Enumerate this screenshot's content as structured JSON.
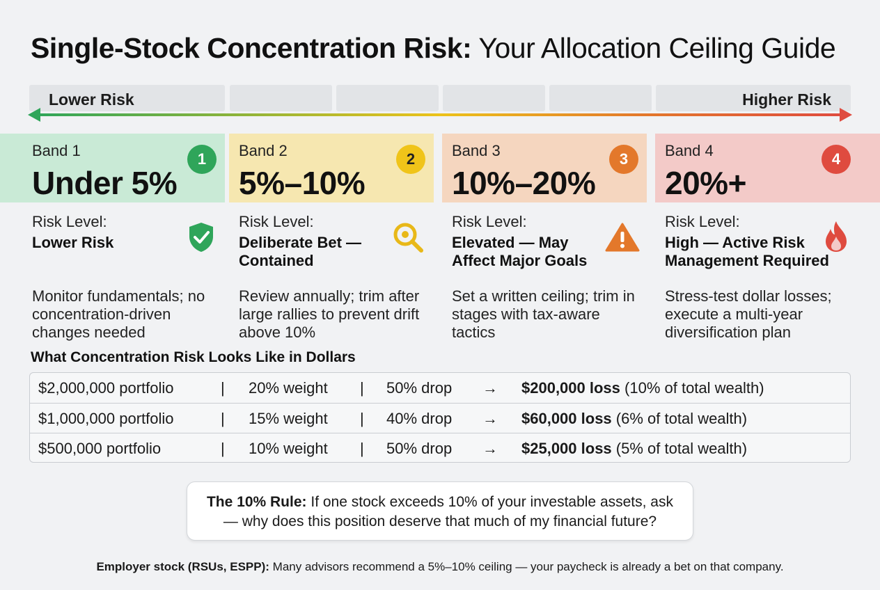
{
  "title": {
    "bold": "Single-Stock Concentration Risk:",
    "rest": "Your Allocation Ceiling Guide"
  },
  "scale": {
    "low_label": "Lower Risk",
    "high_label": "Higher Risk"
  },
  "risk_label": "Risk Level:",
  "bands": [
    {
      "name": "Band 1",
      "range": "Under 5%",
      "badge": "1",
      "risk": "Lower Risk",
      "description": "Monitor fundamentals; no concentration-driven changes needed",
      "icon": "shield-check-icon",
      "head_color": "#c9ead6",
      "badge_color": "#2fa55a"
    },
    {
      "name": "Band 2",
      "range": "5%–10%",
      "badge": "2",
      "risk": "Deliberate Bet — Contained",
      "description": "Review annually; trim after large rallies to prevent drift above 10%",
      "icon": "magnifier-icon",
      "head_color": "#f6e7b0",
      "badge_color": "#f0c419"
    },
    {
      "name": "Band 3",
      "range": "10%–20%",
      "badge": "3",
      "risk": "Elevated — May Affect Major Goals",
      "description": "Set a written ceiling; trim in stages with tax-aware tactics",
      "icon": "warning-icon",
      "head_color": "#f5d6bf",
      "badge_color": "#e3782b"
    },
    {
      "name": "Band 4",
      "range": "20%+",
      "badge": "4",
      "risk": "High — Active Risk Management Required",
      "description": "Stress-test dollar losses; execute a multi-year diversification plan",
      "icon": "fire-icon",
      "head_color": "#f3cac8",
      "badge_color": "#df4b3f"
    }
  ],
  "dollars": {
    "title": "What Concentration Risk Looks Like in Dollars",
    "separator": "|",
    "arrow": "→",
    "rows": [
      {
        "portfolio": "$2,000,000 portfolio",
        "weight": "20% weight",
        "drop": "50% drop",
        "loss": "$200,000 loss",
        "share": "(10% of total wealth)"
      },
      {
        "portfolio": "$1,000,000 portfolio",
        "weight": "15% weight",
        "drop": "40% drop",
        "loss": "$60,000 loss",
        "share": "(6% of total wealth)"
      },
      {
        "portfolio": "$500,000 portfolio",
        "weight": "10% weight",
        "drop": "50% drop",
        "loss": "$25,000 loss",
        "share": "(5% of total wealth)"
      }
    ]
  },
  "rule": {
    "bold": "The 10% Rule:",
    "line1": "If one stock exceeds 10% of your investable assets, ask",
    "line2": "— why does this position deserve that much of my financial future?"
  },
  "footer": {
    "bold": "Employer stock (RSUs, ESPP):",
    "text": "Many advisors recommend a 5%–10% ceiling — your paycheck is already a bet on that company."
  },
  "colors": {
    "green": "#2fa55a",
    "yellow": "#f0c419",
    "orange": "#e3782b",
    "red": "#df4b3f"
  }
}
